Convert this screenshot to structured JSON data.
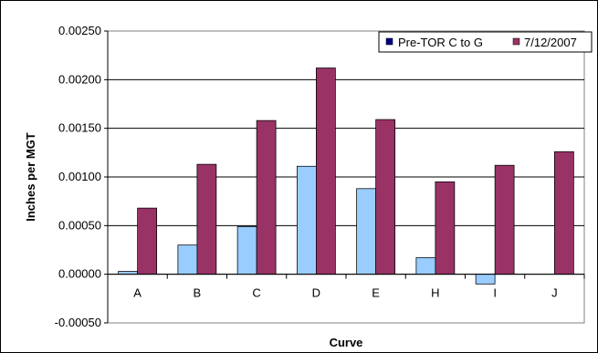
{
  "chart_data": {
    "type": "bar",
    "title": "",
    "xlabel": "Curve",
    "ylabel": "Inches per MGT",
    "categories": [
      "A",
      "B",
      "C",
      "D",
      "E",
      "H",
      "I",
      "J"
    ],
    "series": [
      {
        "name": "Pre-TOR C to G",
        "color": "#99CCFF",
        "legend_color": "#000080",
        "values": [
          3e-05,
          0.0003,
          0.00049,
          0.00111,
          0.00088,
          0.00017,
          -0.0001,
          0
        ]
      },
      {
        "name": "7/12/2007",
        "color": "#993366",
        "values": [
          0.00068,
          0.00113,
          0.00158,
          0.00212,
          0.00159,
          0.00095,
          0.00112,
          0.00126
        ]
      }
    ],
    "ylim": [
      -0.0005,
      0.0025
    ],
    "yticks": [
      -0.0005,
      0,
      0.0005,
      0.001,
      0.0015,
      0.002,
      0.0025
    ],
    "ytick_labels": [
      "-0.00050",
      "0.00000",
      "0.00050",
      "0.00100",
      "0.00150",
      "0.00200",
      "0.00250"
    ],
    "grid": "horizontal",
    "legend_position": "top-right"
  }
}
